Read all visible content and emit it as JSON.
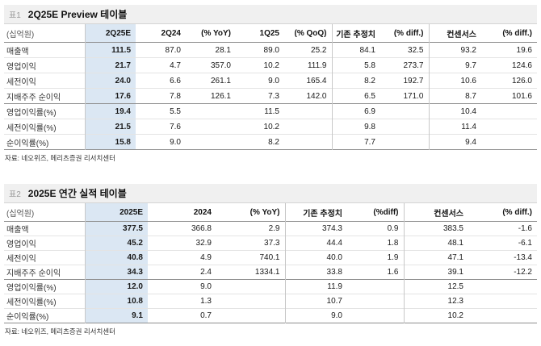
{
  "colors": {
    "highlight": "#dbe7f3",
    "title_band": "#f0f0f0"
  },
  "tables": [
    {
      "tag": "표1",
      "title": "2Q25E Preview 테이블",
      "unit": "(십억원)",
      "columns": [
        "2Q25E",
        "2Q24",
        "(% YoY)",
        "1Q25",
        "(% QoQ)",
        "기존 추정치",
        "(% diff.)",
        "컨센서스",
        "(% diff.)"
      ],
      "highlight_col": 0,
      "vline_before_cols": [
        0,
        5,
        7
      ],
      "strong_divider_after_row": 3,
      "rows": [
        {
          "label": "매출액",
          "values": [
            "111.5",
            "87.0",
            "28.1",
            "89.0",
            "25.2",
            "84.1",
            "32.5",
            "93.2",
            "19.6"
          ]
        },
        {
          "label": "영업이익",
          "values": [
            "21.7",
            "4.7",
            "357.0",
            "10.2",
            "111.9",
            "5.8",
            "273.7",
            "9.7",
            "124.6"
          ]
        },
        {
          "label": "세전이익",
          "values": [
            "24.0",
            "6.6",
            "261.1",
            "9.0",
            "165.4",
            "8.2",
            "192.7",
            "10.6",
            "126.0"
          ]
        },
        {
          "label": "지배주주 순이익",
          "values": [
            "17.6",
            "7.8",
            "126.1",
            "7.3",
            "142.0",
            "6.5",
            "171.0",
            "8.7",
            "101.6"
          ]
        },
        {
          "label": "영업이익률(%)",
          "values": [
            "19.4",
            "5.5",
            "",
            "11.5",
            "",
            "6.9",
            "",
            "10.4",
            ""
          ]
        },
        {
          "label": "세전이익률(%)",
          "values": [
            "21.5",
            "7.6",
            "",
            "10.2",
            "",
            "9.8",
            "",
            "11.4",
            ""
          ]
        },
        {
          "label": "순이익률(%)",
          "values": [
            "15.8",
            "9.0",
            "",
            "8.2",
            "",
            "7.7",
            "",
            "9.4",
            ""
          ]
        }
      ],
      "source": "자료: 네오위즈, 메리츠증권 리서치센터"
    },
    {
      "tag": "표2",
      "title": "2025E 연간 실적 테이블",
      "unit": "(십억원)",
      "columns": [
        "2025E",
        "2024",
        "(% YoY)",
        "기존 추정치",
        "(%diff)",
        "컨센서스",
        "(% diff.)"
      ],
      "highlight_col": 0,
      "vline_before_cols": [
        0,
        3,
        5
      ],
      "strong_divider_after_row": 3,
      "rows": [
        {
          "label": "매출액",
          "values": [
            "377.5",
            "366.8",
            "2.9",
            "374.3",
            "0.9",
            "383.5",
            "-1.6"
          ]
        },
        {
          "label": "영업이익",
          "values": [
            "45.2",
            "32.9",
            "37.3",
            "44.4",
            "1.8",
            "48.1",
            "-6.1"
          ]
        },
        {
          "label": "세전이익",
          "values": [
            "40.8",
            "4.9",
            "740.1",
            "40.0",
            "1.9",
            "47.1",
            "-13.4"
          ]
        },
        {
          "label": "지배주주 순이익",
          "values": [
            "34.3",
            "2.4",
            "1334.1",
            "33.8",
            "1.6",
            "39.1",
            "-12.2"
          ]
        },
        {
          "label": "영업이익률(%)",
          "values": [
            "12.0",
            "9.0",
            "",
            "11.9",
            "",
            "12.5",
            ""
          ]
        },
        {
          "label": "세전이익률(%)",
          "values": [
            "10.8",
            "1.3",
            "",
            "10.7",
            "",
            "12.3",
            ""
          ]
        },
        {
          "label": "순이익률(%)",
          "values": [
            "9.1",
            "0.7",
            "",
            "9.0",
            "",
            "10.2",
            ""
          ]
        }
      ],
      "source": "자료: 네오위즈, 메리츠증권 리서치센터"
    }
  ]
}
